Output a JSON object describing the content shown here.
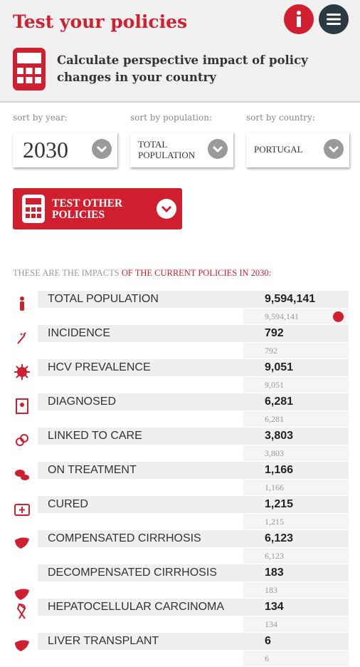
{
  "header": {
    "title": "Test your policies",
    "subtitle": "Calculate perspective impact of policy changes in your country"
  },
  "sort": [
    {
      "label": "sort by year:",
      "value": "2030"
    },
    {
      "label": "sort by population:",
      "value": "TOTAL POPULATION"
    },
    {
      "label": "sort by country:",
      "value": "PORTUGAL"
    }
  ],
  "button": "TEST OTHER POLICIES",
  "impacts": {
    "heading": "THESE ARE THE IMPACTS",
    "heading_highlight": "OF THE CURRENT POLICIES IN 2030:",
    "rows": [
      {
        "label": "TOTAL POPULATION",
        "value": "9,594,141",
        "baseline": "9,594,141"
      },
      {
        "label": "INCIDENCE",
        "value": "792",
        "baseline": "792"
      },
      {
        "label": "HCV PREVALENCE",
        "value": "9,051",
        "baseline": "9,051"
      },
      {
        "label": "DIAGNOSED",
        "value": "6,281",
        "baseline": "6,281"
      },
      {
        "label": "LINKED TO CARE",
        "value": "3,803",
        "baseline": "3,803"
      },
      {
        "label": "ON TREATMENT",
        "value": "1,166",
        "baseline": "1,166"
      },
      {
        "label": "CURED",
        "value": "1,215",
        "baseline": "1,215"
      },
      {
        "label": "COMPENSATED CIRRHOSIS",
        "value": "6,123",
        "baseline": "6,123"
      },
      {
        "label": "DECOMPENSATED CIRRHOSIS",
        "value": "183",
        "baseline": "183"
      },
      {
        "label": "HEPATOCELLULAR CARCINOMA",
        "value": "134",
        "baseline": "134"
      },
      {
        "label": "LIVER TRANSPLANT",
        "value": "6",
        "baseline": "6"
      }
    ]
  }
}
